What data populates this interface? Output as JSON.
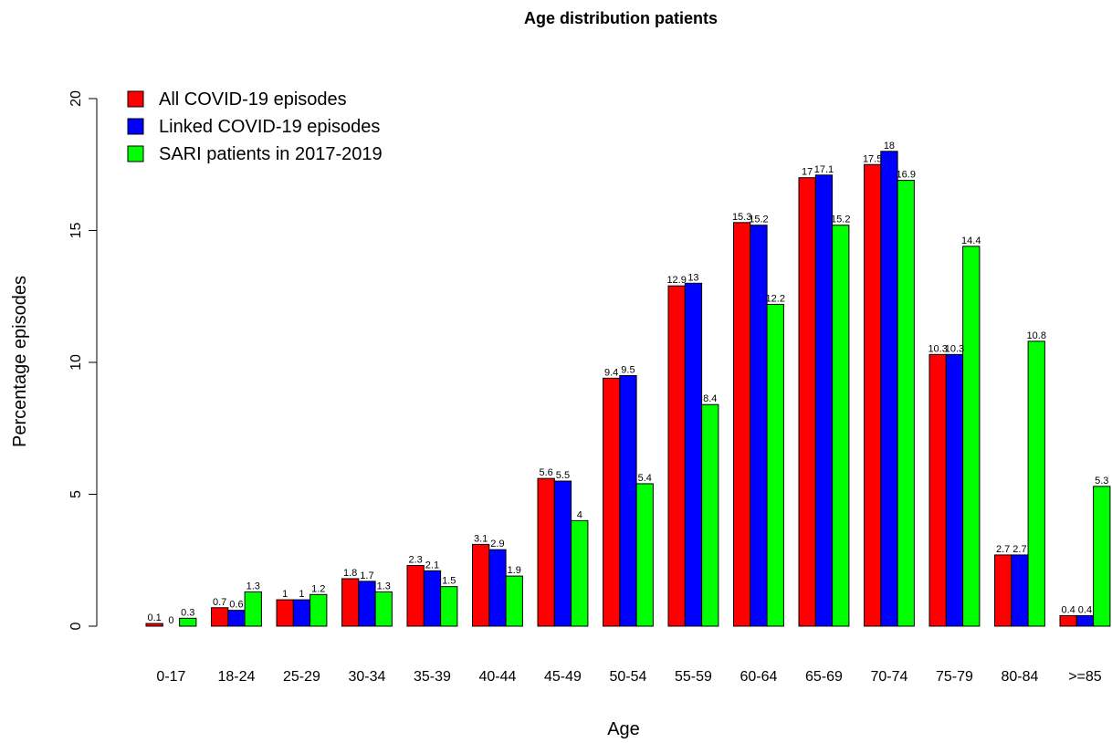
{
  "chart_data": {
    "type": "bar",
    "title": "Age distribution patients",
    "xlabel": "Age",
    "ylabel": "Percentage episodes",
    "ylim": [
      0,
      20
    ],
    "yticks": [
      0,
      5,
      10,
      15,
      20
    ],
    "grid": false,
    "legend_position": "top-left",
    "categories": [
      "0-17",
      "18-24",
      "25-29",
      "30-34",
      "35-39",
      "40-44",
      "45-49",
      "50-54",
      "55-59",
      "60-64",
      "65-69",
      "70-74",
      "75-79",
      "80-84",
      ">=85"
    ],
    "series": [
      {
        "name": "All COVID-19 episodes",
        "color": "#ff0000",
        "values": [
          0.1,
          0.7,
          1,
          1.8,
          2.3,
          3.1,
          5.6,
          9.4,
          12.9,
          15.3,
          17,
          17.5,
          10.3,
          2.7,
          0.4
        ],
        "labels": [
          "0.1",
          "0.7",
          "1",
          "1.8",
          "2.3",
          "3.1",
          "5.6",
          "9.4",
          "12.9",
          "15.3",
          "17",
          "17.5",
          "10.3",
          "2.7",
          "0.4"
        ]
      },
      {
        "name": "Linked COVID-19 episodes",
        "color": "#0000ff",
        "values": [
          0,
          0.6,
          1,
          1.7,
          2.1,
          2.9,
          5.5,
          9.5,
          13,
          15.2,
          17.1,
          18,
          10.3,
          2.7,
          0.4
        ],
        "labels": [
          "0",
          "0.6",
          "1",
          "1.7",
          "2.1",
          "2.9",
          "5.5",
          "9.5",
          "13",
          "15.2",
          "17.1",
          "18",
          "10.3",
          "2.7",
          "0.4"
        ]
      },
      {
        "name": "SARI patients in 2017-2019",
        "color": "#00ff00",
        "values": [
          0.3,
          1.3,
          1.2,
          1.3,
          1.5,
          1.9,
          4,
          5.4,
          8.4,
          12.2,
          15.2,
          16.9,
          14.4,
          10.8,
          5.3
        ],
        "labels": [
          "0.3",
          "1.3",
          "1.2",
          "1.3",
          "1.5",
          "1.9",
          "4",
          "5.4",
          "8.4",
          "12.2",
          "15.2",
          "16.9",
          "14.4",
          "10.8",
          "5.3"
        ]
      }
    ]
  }
}
